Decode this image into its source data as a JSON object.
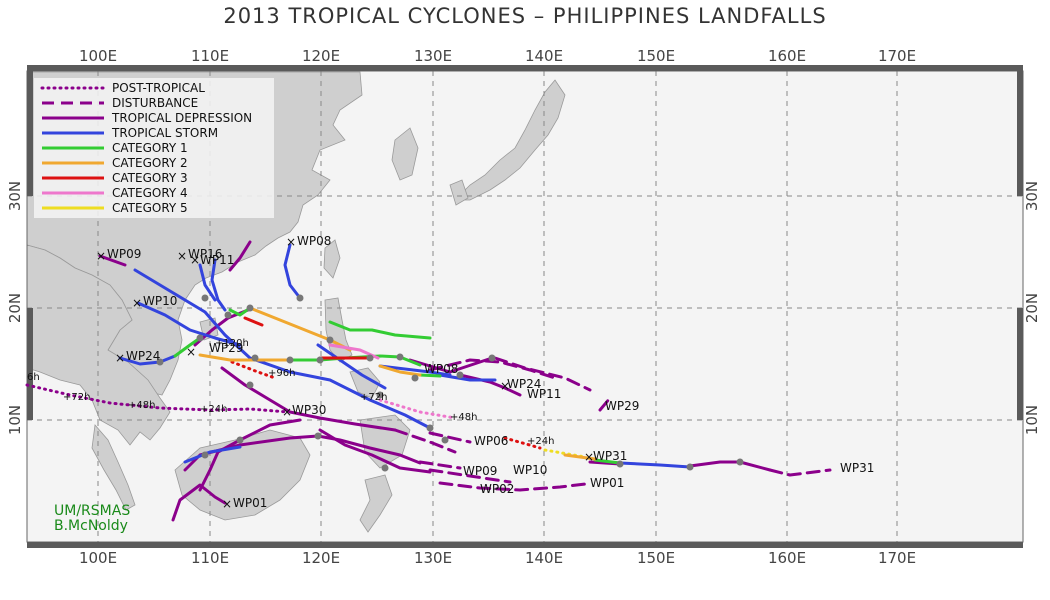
{
  "title": "2013 TROPICAL CYCLONES – PHILIPPINES LANDFALLS",
  "axes": {
    "lon_labels": [
      "100E",
      "110E",
      "120E",
      "130E",
      "140E",
      "150E",
      "160E",
      "170E"
    ],
    "lat_labels": [
      "10N",
      "20N",
      "30N"
    ]
  },
  "legend": [
    {
      "label": "POST-TROPICAL",
      "color": "#8b008b",
      "style": "dotted"
    },
    {
      "label": "DISTURBANCE",
      "color": "#8b008b",
      "style": "dashed"
    },
    {
      "label": "TROPICAL DEPRESSION",
      "color": "#8b008b",
      "style": "solid"
    },
    {
      "label": "TROPICAL STORM",
      "color": "#3344dd",
      "style": "solid"
    },
    {
      "label": "CATEGORY 1",
      "color": "#33cc33",
      "style": "solid"
    },
    {
      "label": "CATEGORY 2",
      "color": "#f0a830",
      "style": "solid"
    },
    {
      "label": "CATEGORY 3",
      "color": "#dd1111",
      "style": "solid"
    },
    {
      "label": "CATEGORY 4",
      "color": "#ee77cc",
      "style": "solid"
    },
    {
      "label": "CATEGORY 5",
      "color": "#eedd22",
      "style": "solid"
    }
  ],
  "storm_labels": [
    "WP09",
    "WP16",
    "WP11",
    "WP08",
    "WP10",
    "WP24",
    "WP29",
    "WP08",
    "WP24",
    "WP11",
    "WP29",
    "WP30",
    "WP06",
    "WP31",
    "WP31",
    "WP09",
    "WP10",
    "WP02",
    "WP01",
    "WP01"
  ],
  "time_labels": [
    "+72h",
    "+48h",
    "+24h",
    "+96h",
    "+72h",
    "+48h",
    "+24h",
    "+120h",
    "6h"
  ],
  "credit": [
    "UM/RSMAS",
    "B.McNoldy"
  ],
  "colors": {
    "land": "#cfcfcf",
    "ocean": "#f4f4f4",
    "coast": "#999999",
    "frame": "#555555",
    "grid": "#888888",
    "post_tropical": "#8b008b",
    "disturbance": "#8b008b",
    "tropical_depression": "#8b008b",
    "tropical_storm": "#3344dd",
    "category_1": "#33cc33",
    "category_2": "#f0a830",
    "category_3": "#dd1111",
    "category_4": "#ee77cc",
    "category_5": "#eedd22",
    "credit": "#1a8a1a"
  }
}
